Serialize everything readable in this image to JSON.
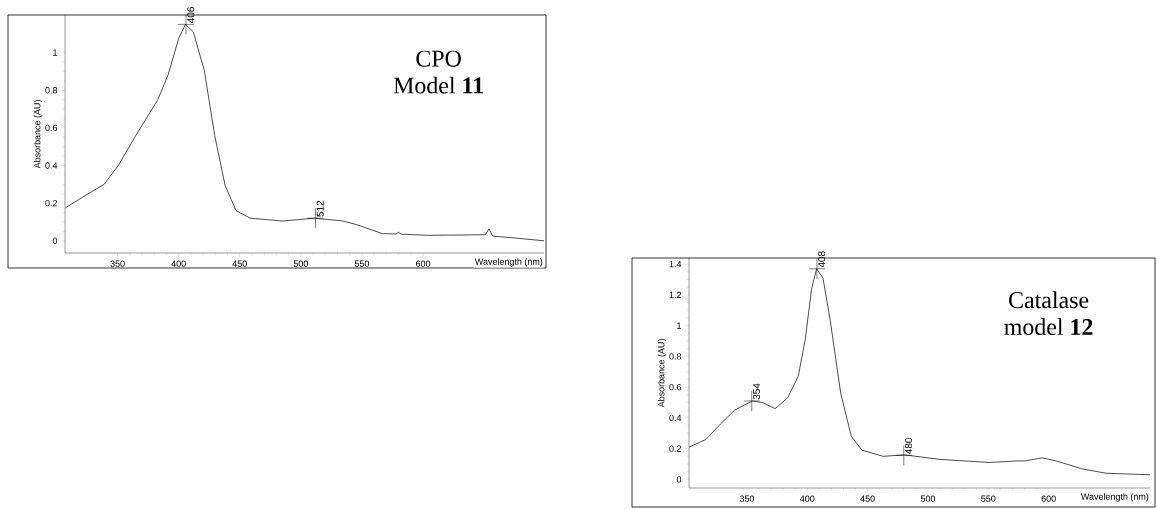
{
  "chart_data": [
    {
      "type": "line",
      "title": "CPO",
      "subtitle": "Model **11**",
      "xlabel": "Wavelength (nm)",
      "ylabel": "Absorbance (AU)",
      "xlim": [
        307,
        699
      ],
      "ylim": [
        -0.065,
        1.2
      ],
      "xticks": [
        350,
        400,
        450,
        500,
        550,
        600
      ],
      "yticks": [
        0,
        0.2,
        0.4,
        0.6,
        0.8,
        1
      ],
      "annotations": [
        {
          "text": "406",
          "x": 406,
          "y": 1.15
        },
        {
          "text": "512",
          "x": 512,
          "y": 0.12
        }
      ],
      "series": [
        {
          "color": "#000000",
          "x": [
            307.4,
            321,
            339,
            350.6,
            365,
            383,
            391.5,
            400,
            405.5,
            412,
            421,
            429.5,
            438,
            447,
            458.6,
            485,
            511,
            534.5,
            546,
            566.7,
            578,
            580,
            582,
            604.7,
            651,
            654,
            657,
            677.7,
            699
          ],
          "values": [
            0.175,
            0.23,
            0.3,
            0.4,
            0.56,
            0.75,
            0.885,
            1.075,
            1.15,
            1.11,
            0.905,
            0.56,
            0.295,
            0.16,
            0.12,
            0.105,
            0.12,
            0.105,
            0.085,
            0.038,
            0.036,
            0.045,
            0.035,
            0.029,
            0.032,
            0.063,
            0.025,
            0.013,
            0.0
          ]
        }
      ]
    },
    {
      "type": "line",
      "title": "Catalase",
      "subtitle": "model **12**",
      "xlabel": "Wavelength (nm)",
      "ylabel": "Absorbance (AU)",
      "xlim": [
        302,
        684
      ],
      "ylim": [
        -0.056,
        1.44
      ],
      "xticks": [
        350,
        400,
        450,
        500,
        550,
        600
      ],
      "yticks": [
        0,
        0.2,
        0.4,
        0.6,
        0.8,
        1,
        1.2,
        1.4
      ],
      "annotations": [
        {
          "text": "408",
          "x": 408,
          "y": 1.37
        },
        {
          "text": "354",
          "x": 354,
          "y": 0.51
        },
        {
          "text": "480",
          "x": 480,
          "y": 0.156
        }
      ],
      "series": [
        {
          "color": "#000000",
          "x": [
            302,
            316,
            328,
            339.7,
            354.4,
            363,
            373.4,
            383.7,
            392.5,
            398.3,
            403.6,
            407.7,
            413,
            418.9,
            427.7,
            436.5,
            445.3,
            462.9,
            480.5,
            509.8,
            550.8,
            574.3,
            580,
            594.7,
            606.4,
            627,
            647.5,
            684
          ],
          "values": [
            0.21,
            0.26,
            0.36,
            0.45,
            0.51,
            0.5,
            0.46,
            0.53,
            0.67,
            0.91,
            1.24,
            1.37,
            1.31,
            1.04,
            0.56,
            0.28,
            0.19,
            0.15,
            0.16,
            0.13,
            0.11,
            0.12,
            0.12,
            0.14,
            0.12,
            0.07,
            0.04,
            0.03
          ]
        }
      ]
    }
  ]
}
